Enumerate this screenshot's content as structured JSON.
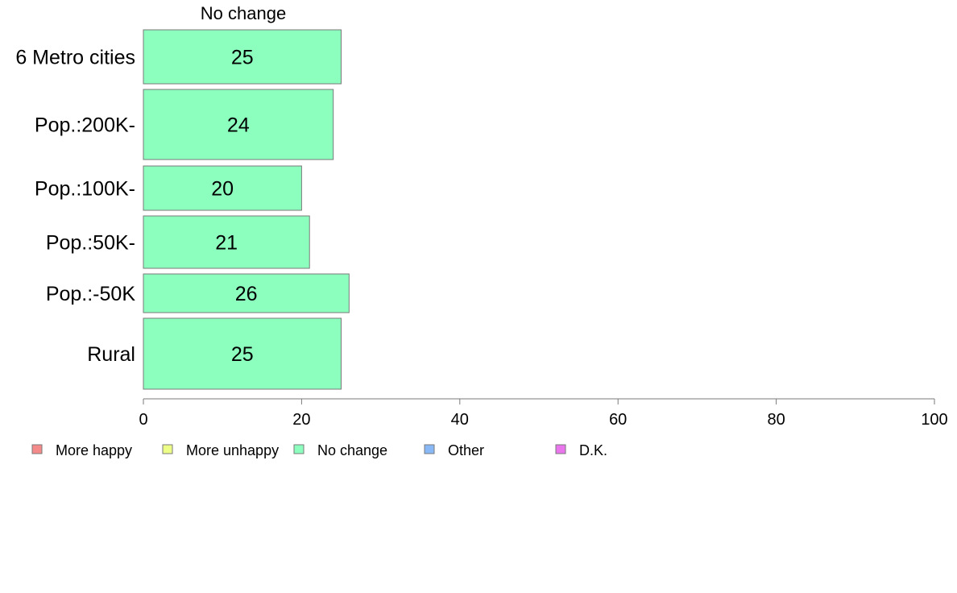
{
  "chart_data": {
    "type": "bar",
    "orientation": "horizontal",
    "title": "No change",
    "categories": [
      "6 Metro cities",
      "Pop.:200K-",
      "Pop.:100K-",
      "Pop.:50K-",
      "Pop.:-50K",
      "Rural"
    ],
    "series": [
      {
        "name": "No change",
        "values": [
          25,
          24,
          20,
          21,
          26,
          25
        ],
        "color": "#8cffbe"
      }
    ],
    "data_labels": [
      "25",
      "24",
      "20",
      "21",
      "26",
      "25"
    ],
    "xlim": [
      0,
      100
    ],
    "xticks": [
      0,
      20,
      40,
      60,
      80,
      100
    ],
    "grid": false,
    "legend_position": "bottom-left",
    "legend": [
      {
        "label": "More happy",
        "color": "#f58a8a"
      },
      {
        "label": "More unhappy",
        "color": "#eeff88"
      },
      {
        "label": "No change",
        "color": "#8cffbe"
      },
      {
        "label": "Other",
        "color": "#88b8f5"
      },
      {
        "label": "D.K.",
        "color": "#ea76ee"
      }
    ]
  }
}
